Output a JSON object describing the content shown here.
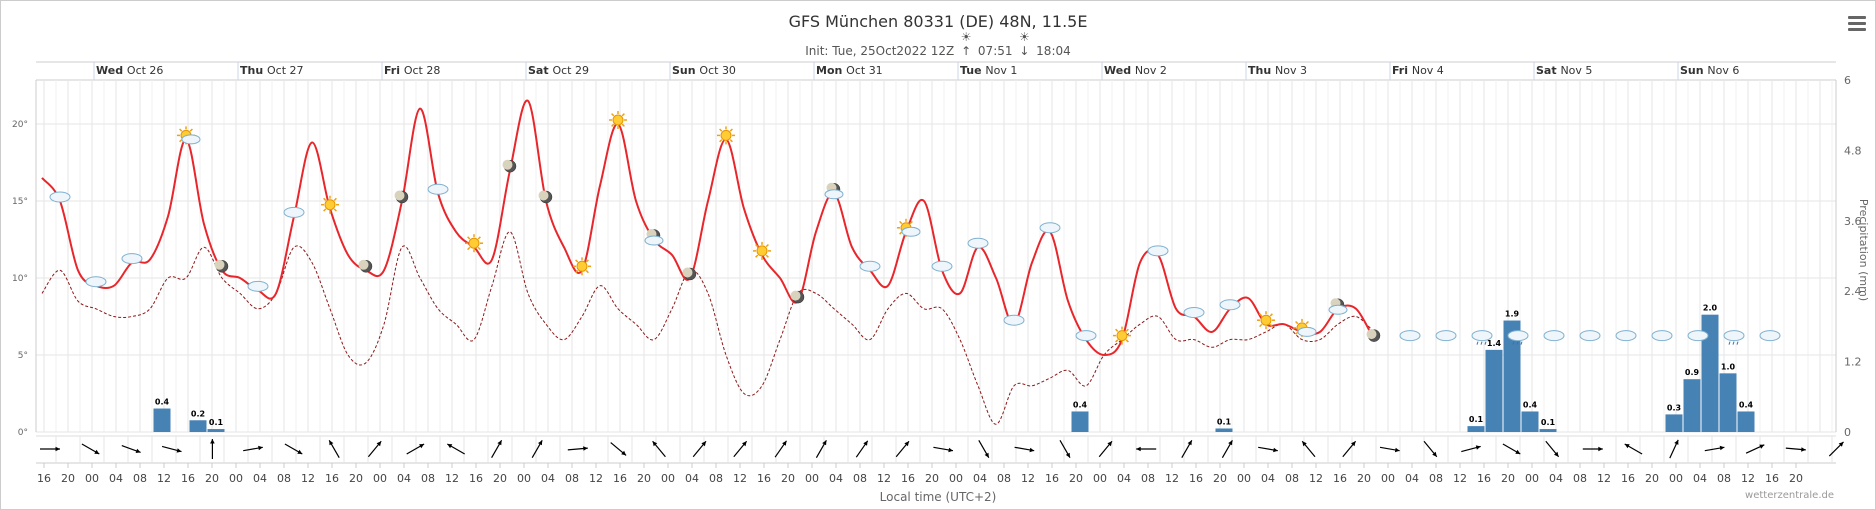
{
  "title": "GFS München 80331 (DE) 48N, 11.5E",
  "subtitle": {
    "init": "Init: Tue, 25Oct2022 12Z",
    "sunrise": "07:51",
    "sunset": "18:04"
  },
  "credit": "wetterzentrale.de",
  "x_axis_title": "Local time (UTC+2)",
  "y_axis_right_title": "Precipitation (mm)",
  "colors": {
    "temperature": "#e8262b",
    "dewpoint": "#8b1a1a",
    "precipitation": "#4682b4",
    "grid": "#e6e6e6"
  },
  "chart_data": {
    "type": "line",
    "start_hour": 15,
    "step_hours": 3,
    "days": [
      {
        "name": "Wed",
        "date": "Oct 26"
      },
      {
        "name": "Thu",
        "date": "Oct 27"
      },
      {
        "name": "Fri",
        "date": "Oct 28"
      },
      {
        "name": "Sat",
        "date": "Oct 29"
      },
      {
        "name": "Sun",
        "date": "Oct 30"
      },
      {
        "name": "Mon",
        "date": "Oct 31"
      },
      {
        "name": "Tue",
        "date": "Nov 1"
      },
      {
        "name": "Wed",
        "date": "Nov 2"
      },
      {
        "name": "Thu",
        "date": "Nov 3"
      },
      {
        "name": "Fri",
        "date": "Nov 4"
      },
      {
        "name": "Sat",
        "date": "Nov 5"
      },
      {
        "name": "Sun",
        "date": "Nov 6"
      }
    ],
    "y_left": {
      "min": 0,
      "max": 24,
      "ticks": [
        "0°",
        "5°",
        "10°",
        "15°",
        "20°"
      ]
    },
    "y_right": {
      "min": 0,
      "max": 6,
      "ticks": [
        "0",
        "1.2",
        "2.4",
        "3.6",
        "4.8",
        "6"
      ]
    },
    "x_tick_labels": [
      "16",
      "20",
      "00",
      "04",
      "08",
      "12",
      "16",
      "20",
      "00",
      "04",
      "08",
      "12",
      "16",
      "20",
      "00",
      "04",
      "08",
      "12",
      "16",
      "20",
      "00",
      "04",
      "08",
      "12",
      "16",
      "20",
      "00",
      "04",
      "08",
      "12",
      "16",
      "20",
      "00",
      "04",
      "08",
      "12",
      "16",
      "20",
      "00",
      "04",
      "08",
      "12",
      "16",
      "20",
      "00",
      "04",
      "08",
      "12",
      "16",
      "20",
      "00",
      "04",
      "08",
      "12",
      "16",
      "20",
      "00",
      "04",
      "08",
      "12",
      "16",
      "20",
      "00",
      "04",
      "08",
      "12",
      "16",
      "20",
      "00",
      "04",
      "08",
      "12",
      "16",
      "20"
    ],
    "series": [
      {
        "name": "Temperature",
        "unit": "°C",
        "values": [
          16.5,
          15,
          10.5,
          9.5,
          9.5,
          11,
          11.2,
          14,
          19,
          13.5,
          10.5,
          10,
          9.2,
          9,
          14,
          18.8,
          14.5,
          11.5,
          10.5,
          10.5,
          15,
          21,
          15.5,
          13,
          12,
          11.2,
          17,
          21.5,
          15,
          12,
          10.5,
          16,
          20,
          15,
          12.5,
          11.5,
          10,
          15,
          19,
          14.5,
          11.5,
          10,
          8.5,
          13,
          15.5,
          12,
          10.5,
          9.5,
          13,
          15,
          10.5,
          9,
          12,
          10,
          7,
          11,
          13,
          8.5,
          6,
          5,
          6,
          11,
          11.5,
          8,
          7.5,
          6.5,
          8,
          8.7,
          7,
          7,
          6.5,
          6.5,
          8,
          8,
          6
        ]
      },
      {
        "name": "Dewpoint",
        "unit": "°C",
        "values": [
          9,
          10.5,
          8.5,
          8,
          7.5,
          7.5,
          8,
          10,
          10,
          12,
          10,
          9,
          8,
          9,
          12,
          11,
          8,
          5,
          4.5,
          7,
          12,
          10,
          8,
          7,
          6,
          9.5,
          13,
          9,
          7,
          6,
          7.5,
          9.5,
          8,
          7,
          6,
          8,
          10.5,
          9,
          5,
          2.5,
          3,
          6,
          9,
          9,
          8,
          7,
          6,
          8,
          9,
          8,
          8,
          6,
          3,
          0.5,
          3,
          3,
          3.5,
          4,
          3,
          5,
          6,
          7,
          7.5,
          6,
          6,
          5.5,
          6,
          6,
          6.5,
          7,
          6,
          6,
          7,
          7.5,
          6.5
        ]
      }
    ],
    "precipitation": {
      "unit": "mm",
      "bars": [
        {
          "index": 7,
          "value": 0.4,
          "label": "0.4"
        },
        {
          "index": 9,
          "value": 0.2,
          "label": "0.2"
        },
        {
          "index": 10,
          "value": 0.05,
          "label": "0.1"
        },
        {
          "index": 58,
          "value": 0.35,
          "label": "0.4"
        },
        {
          "index": 66,
          "value": 0.06,
          "label": "0.1"
        },
        {
          "index": 80,
          "value": 0.1,
          "label": "0.1"
        },
        {
          "index": 81,
          "value": 1.4,
          "label": "1.4"
        },
        {
          "index": 82,
          "value": 1.9,
          "label": "1.9"
        },
        {
          "index": 83,
          "value": 0.35,
          "label": "0.4"
        },
        {
          "index": 84,
          "value": 0.05,
          "label": "0.1"
        },
        {
          "index": 91,
          "value": 0.3,
          "label": "0.3"
        },
        {
          "index": 92,
          "value": 0.9,
          "label": "0.9"
        },
        {
          "index": 93,
          "value": 2.0,
          "label": "2.0"
        },
        {
          "index": 94,
          "value": 1.0,
          "label": "1.0"
        },
        {
          "index": 95,
          "value": 0.35,
          "label": "0.4"
        }
      ]
    },
    "weather_icons": [
      {
        "type": "cloud",
        "index": 1
      },
      {
        "type": "cloud",
        "index": 3
      },
      {
        "type": "cloud",
        "index": 5
      },
      {
        "type": "sun-cloud",
        "index": 8
      },
      {
        "type": "moon",
        "index": 10
      },
      {
        "type": "cloud",
        "index": 12
      },
      {
        "type": "cloud",
        "index": 14
      },
      {
        "type": "sun",
        "index": 16
      },
      {
        "type": "moon",
        "index": 18
      },
      {
        "type": "moon",
        "index": 20
      },
      {
        "type": "cloud",
        "index": 22
      },
      {
        "type": "sun",
        "index": 24
      },
      {
        "type": "moon",
        "index": 26
      },
      {
        "type": "moon",
        "index": 28
      },
      {
        "type": "sun",
        "index": 30
      },
      {
        "type": "sun",
        "index": 32
      },
      {
        "type": "moon-cloud",
        "index": 34
      },
      {
        "type": "moon",
        "index": 36
      },
      {
        "type": "sun",
        "index": 38
      },
      {
        "type": "sun",
        "index": 40
      },
      {
        "type": "moon",
        "index": 42
      },
      {
        "type": "moon-cloud",
        "index": 44
      },
      {
        "type": "cloud",
        "index": 46
      },
      {
        "type": "sun-cloud",
        "index": 48
      },
      {
        "type": "cloud",
        "index": 50
      },
      {
        "type": "cloud",
        "index": 52
      },
      {
        "type": "cloud",
        "index": 54
      },
      {
        "type": "cloud",
        "index": 56
      },
      {
        "type": "cloud",
        "index": 58
      },
      {
        "type": "sun",
        "index": 60
      },
      {
        "type": "cloud",
        "index": 62
      },
      {
        "type": "cloud",
        "index": 64
      },
      {
        "type": "cloud",
        "index": 66
      },
      {
        "type": "sun",
        "index": 68
      },
      {
        "type": "sun-cloud",
        "index": 70
      },
      {
        "type": "moon-cloud",
        "index": 72
      },
      {
        "type": "moon",
        "index": 74
      },
      {
        "type": "cloud",
        "index": 76
      },
      {
        "type": "cloud",
        "index": 78
      },
      {
        "type": "rain",
        "index": 80
      },
      {
        "type": "rain",
        "index": 82
      },
      {
        "type": "cloud",
        "index": 84
      },
      {
        "type": "cloud",
        "index": 86
      },
      {
        "type": "cloud",
        "index": 88
      },
      {
        "type": "cloud",
        "index": 90
      },
      {
        "type": "cloud",
        "index": 92
      },
      {
        "type": "rain",
        "index": 94
      },
      {
        "type": "cloud",
        "index": 96
      }
    ],
    "wind_directions_deg": [
      90,
      120,
      110,
      105,
      0,
      80,
      120,
      330,
      40,
      60,
      300,
      30,
      30,
      85,
      130,
      320,
      40,
      40,
      35,
      30,
      35,
      40,
      100,
      150,
      100,
      150,
      40,
      270,
      30,
      30,
      100,
      320,
      40,
      100,
      140,
      75,
      120,
      140,
      90,
      300,
      25,
      80,
      65,
      95,
      45
    ]
  }
}
